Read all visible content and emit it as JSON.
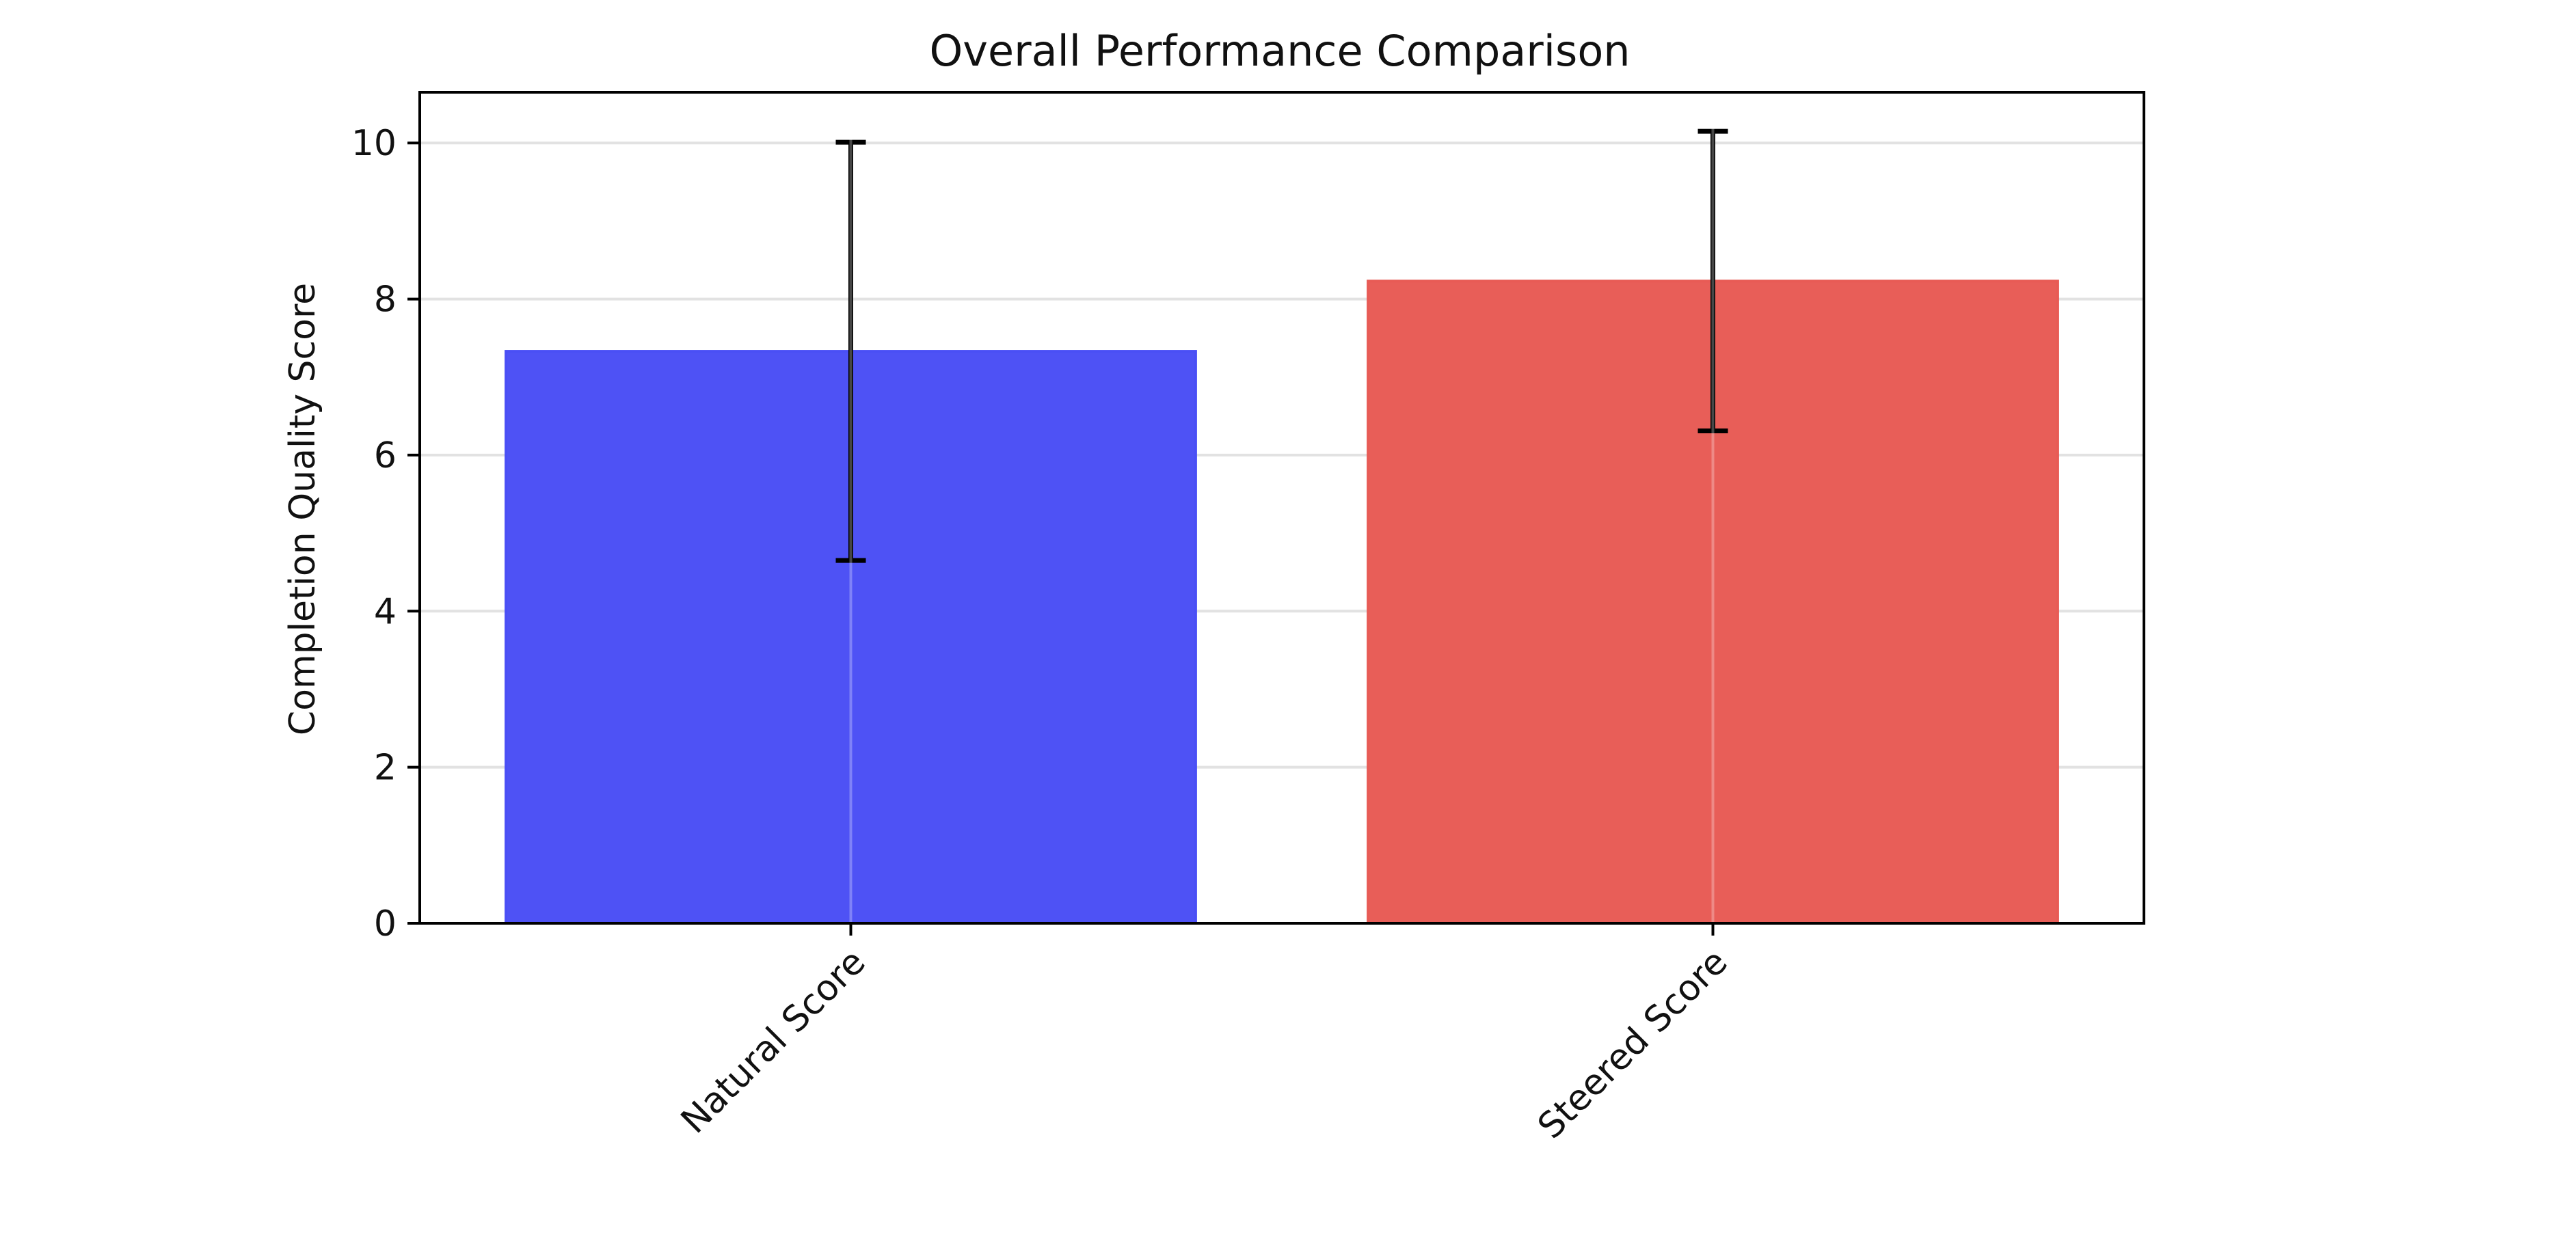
{
  "chart_data": {
    "type": "bar",
    "title": "Overall Performance Comparison",
    "xlabel": "",
    "ylabel": "Completion Quality Score",
    "categories": [
      "Natural Score",
      "Steered Score"
    ],
    "values": [
      7.33,
      8.23
    ],
    "errors": [
      2.68,
      1.92
    ],
    "colors": [
      "#4a4ff5",
      "#e85b55"
    ],
    "ylim": [
      0,
      10.65
    ],
    "yticks": [
      0,
      2,
      4,
      6,
      8,
      10
    ],
    "grid": true,
    "legend": "none"
  }
}
